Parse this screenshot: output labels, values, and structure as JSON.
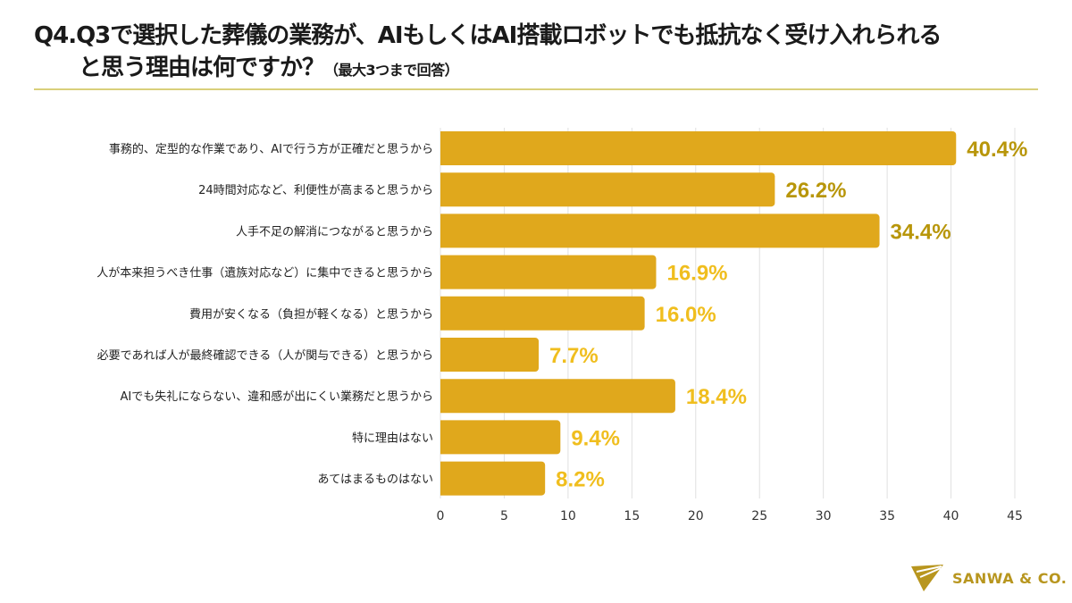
{
  "header": {
    "title_line1": "Q4.Q3で選択した葬儀の業務が、AIもしくはAI搭載ロボットでも抵抗なく受け入れられる",
    "title_line2": "と思う理由は何ですか？",
    "title_note": "（最大3つまで回答）"
  },
  "brand": {
    "logo_text": "SANWA & CO.",
    "color": "#B8961F"
  },
  "colors": {
    "bar": "#E0A81C",
    "label_dark": "#B8960A",
    "label_light": "#F0BE1E",
    "grid": "#E0E0E0"
  },
  "chart_data": {
    "type": "bar",
    "orientation": "horizontal",
    "categories": [
      "事務的、定型的な作業であり、AIで行う方が正確だと思うから",
      "24時間対応など、利便性が高まると思うから",
      "人手不足の解消につながると思うから",
      "人が本来担うべき仕事（遺族対応など）に集中できると思うから",
      "費用が安くなる（負担が軽くなる）と思うから",
      "必要であれば人が最終確認できる（人が関与できる）と思うから",
      "AIでも失礼にならない、違和感が出にくい業務だと思うから",
      "特に理由はない",
      "あてはまるものはない"
    ],
    "values": [
      40.4,
      26.2,
      34.4,
      16.9,
      16.0,
      7.7,
      18.4,
      9.4,
      8.2
    ],
    "data_labels": [
      "40.4%",
      "26.2%",
      "34.4%",
      "16.9%",
      "16.0%",
      "7.7%",
      "18.4%",
      "9.4%",
      "8.2%"
    ],
    "xlim": [
      0,
      45
    ],
    "xticks": [
      0,
      5,
      10,
      15,
      20,
      25,
      30,
      35,
      40,
      45
    ],
    "grid": "vertical",
    "unit": "%"
  }
}
